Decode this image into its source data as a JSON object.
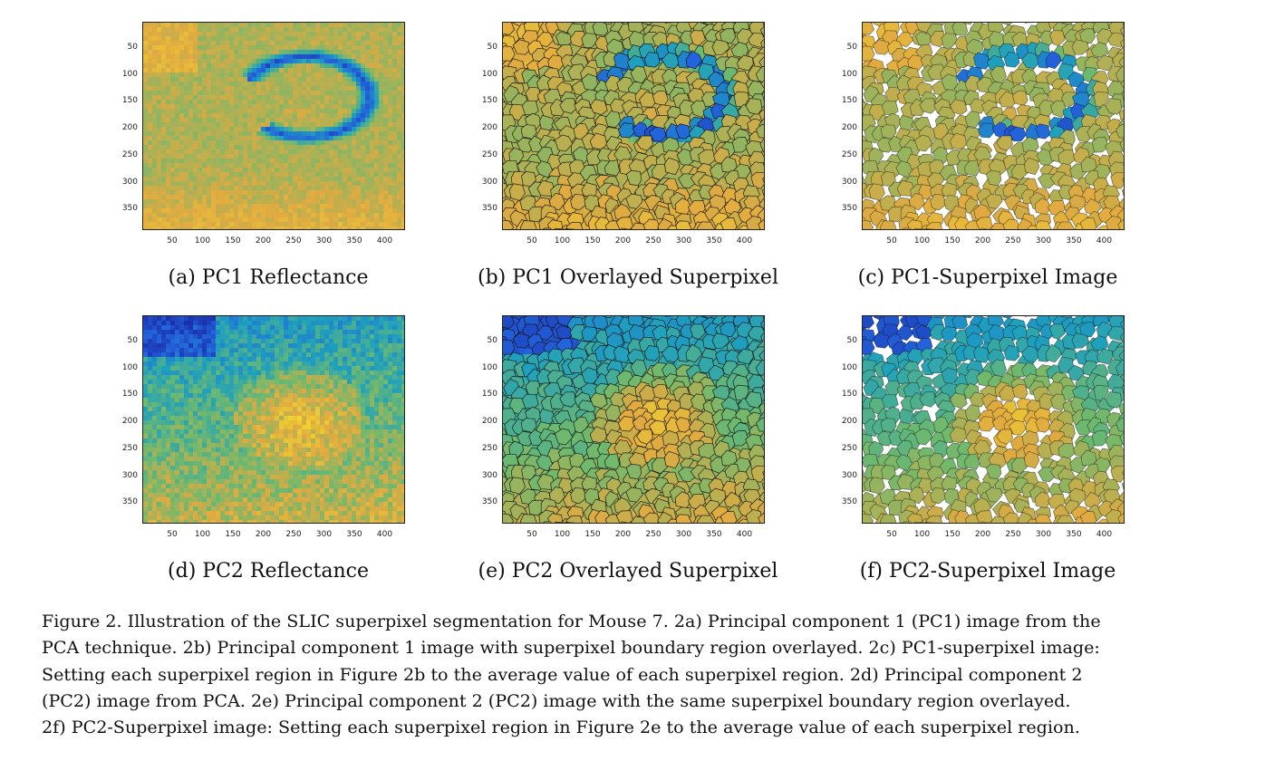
{
  "panels": [
    {
      "id": "a",
      "caption": "(a) PC1 Reflectance",
      "style": "pc1-raw"
    },
    {
      "id": "b",
      "caption": "(b) PC1 Overlayed Superpixel",
      "style": "pc1-overlay"
    },
    {
      "id": "c",
      "caption": "(c) PC1-Superpixel Image",
      "style": "pc1-superpixel"
    },
    {
      "id": "d",
      "caption": "(d) PC2 Reflectance",
      "style": "pc2-raw"
    },
    {
      "id": "e",
      "caption": "(e) PC2 Overlayed Superpixel",
      "style": "pc2-overlay"
    },
    {
      "id": "f",
      "caption": "(f) PC2-Superpixel Image",
      "style": "pc2-superpixel"
    }
  ],
  "axes": {
    "y_ticks": [
      "50",
      "100",
      "150",
      "200",
      "250",
      "300",
      "350"
    ],
    "x_ticks": [
      "50",
      "100",
      "150",
      "200",
      "250",
      "300",
      "350",
      "400"
    ]
  },
  "figure_caption": {
    "lines": [
      "Figure 2. Illustration of the SLIC superpixel segmentation for Mouse 7. 2a) Principal component 1 (PC1) image from the",
      "PCA technique. 2b) Principal component 1 image with superpixel boundary region overlayed. 2c) PC1-superpixel image:",
      "Setting each superpixel region in Figure 2b to the average value of each superpixel region.  2d) Principal component 2",
      "(PC2) image from PCA. 2e) Principal component 2 (PC2) image with the same superpixel boundary region overlayed.",
      "2f) PC2-Superpixel image: Setting each superpixel region in Figure 2e to the average value of each superpixel region."
    ]
  },
  "colors": {
    "dark_blue": "#1a3fc4",
    "blue": "#2a7ad8",
    "teal": "#3fae9e",
    "green": "#8bbd5a",
    "orange": "#e8a93c",
    "yellow": "#f5e23a",
    "boundary": "#111111"
  }
}
